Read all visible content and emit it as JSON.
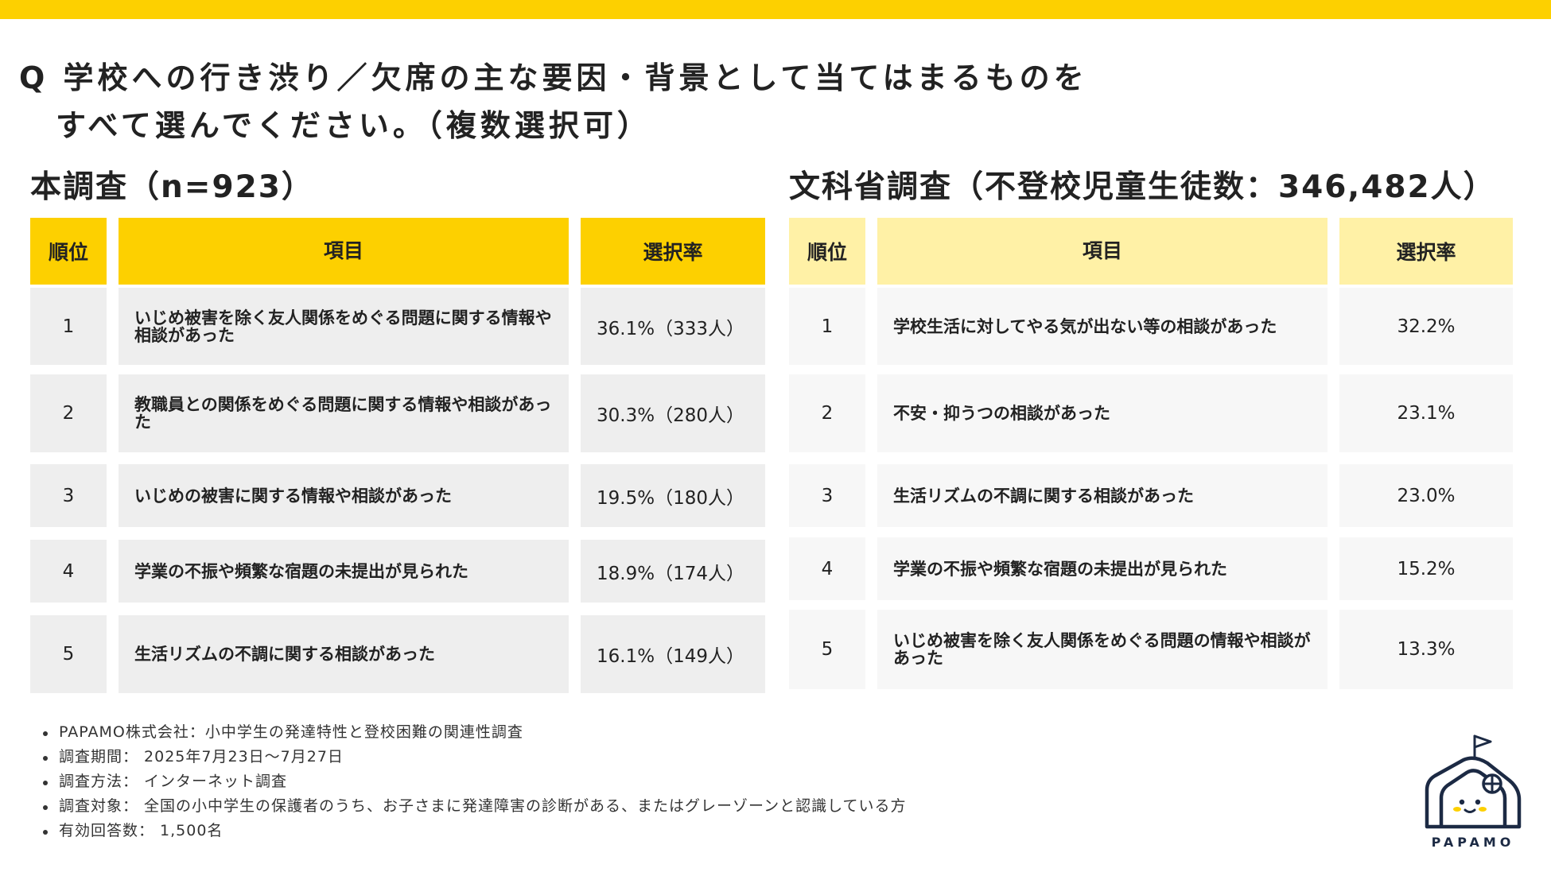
{
  "question": {
    "line1": "Q 学校への行き渋り／欠席の主な要因・背景として当てはまるものを",
    "line2": "すべて選んでください。（複数選択可）"
  },
  "left": {
    "title": "本調査（n=923）",
    "headers": {
      "rank": "順位",
      "item": "項目",
      "rate": "選択率"
    },
    "rows": [
      {
        "rank": "1",
        "item": "いじめ被害を除く友人関係をめぐる問題に関する情報や相談があった",
        "rate": "36.1%（333人）"
      },
      {
        "rank": "2",
        "item": "教職員との関係をめぐる問題に関する情報や相談があった",
        "rate": "30.3%（280人）"
      },
      {
        "rank": "3",
        "item": "いじめの被害に関する情報や相談があった",
        "rate": "19.5%（180人）"
      },
      {
        "rank": "4",
        "item": "学業の不振や頻繁な宿題の未提出が見られた",
        "rate": "18.9%（174人）"
      },
      {
        "rank": "5",
        "item": "生活リズムの不調に関する相談があった",
        "rate": "16.1%（149人）"
      }
    ]
  },
  "right": {
    "title": "文科省調査（不登校児童生徒数：346,482人）",
    "headers": {
      "rank": "順位",
      "item": "項目",
      "rate": "選択率"
    },
    "rows": [
      {
        "rank": "1",
        "item": "学校生活に対してやる気が出ない等の相談があった",
        "rate": "32.2%"
      },
      {
        "rank": "2",
        "item": "不安・抑うつの相談があった",
        "rate": "23.1%"
      },
      {
        "rank": "3",
        "item": "生活リズムの不調に関する相談があった",
        "rate": "23.0%"
      },
      {
        "rank": "4",
        "item": "学業の不振や頻繁な宿題の未提出が見られた",
        "rate": "15.2%"
      },
      {
        "rank": "5",
        "item": "いじめ被害を除く友人関係をめぐる問題の情報や相談があった",
        "rate": "13.3%"
      }
    ]
  },
  "notes": [
    "PAPAMO株式会社：小中学生の発達特性と登校困難の関連性調査",
    "調査期間： 2025年7月23日～7月27日",
    "調査方法： インターネット調査",
    "調査対象： 全国の小中学生の保護者のうち、お子さまに発達障害の診断がある、またはグレーゾーンと認識している方",
    "有効回答数： 1,500名"
  ],
  "logo": {
    "text": "PAPAMO",
    "icon": "house-face-icon"
  },
  "colors": {
    "accent_yellow": "#fdd000",
    "light_yellow": "#fff1a6",
    "left_cell_bg": "#eeeeee",
    "right_cell_bg": "#f7f7f7",
    "navy": "#1c2a44"
  }
}
